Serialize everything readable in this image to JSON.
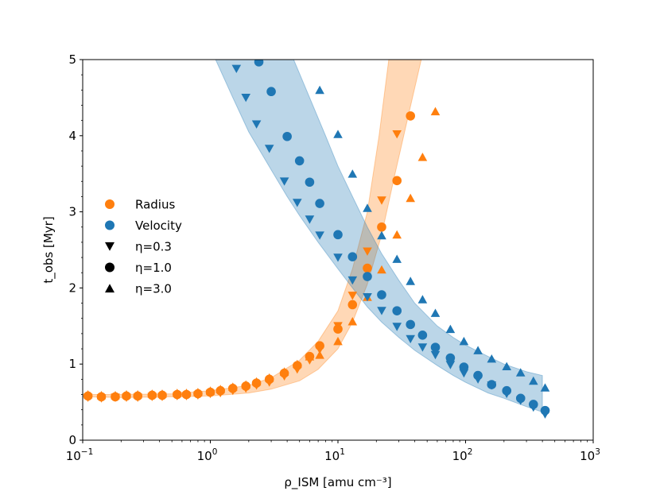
{
  "chart_data": {
    "type": "scatter",
    "title": "",
    "xlabel": "ρ_ISM [amu cm⁻³]",
    "ylabel": "t_obs [Myr]",
    "xscale": "log",
    "xlim": [
      0.1,
      1000
    ],
    "ylim": [
      0,
      5
    ],
    "xticks": [
      {
        "base": "10",
        "exp": "−1",
        "value": 0.1
      },
      {
        "base": "10",
        "exp": "0",
        "value": 1
      },
      {
        "base": "10",
        "exp": "1",
        "value": 10
      },
      {
        "base": "10",
        "exp": "2",
        "value": 100
      },
      {
        "base": "10",
        "exp": "3",
        "value": 1000
      }
    ],
    "yticks": [
      {
        "label": "0",
        "value": 0
      },
      {
        "label": "1",
        "value": 1
      },
      {
        "label": "2",
        "value": 2
      },
      {
        "label": "3",
        "value": 3
      },
      {
        "label": "4",
        "value": 4
      },
      {
        "label": "5",
        "value": 5
      }
    ],
    "grid": false,
    "colors": {
      "radius": "#ff7f0e",
      "velocity": "#1f77b4",
      "legend_marker": "#000000"
    },
    "legend": {
      "placement": "center-left",
      "entries": [
        {
          "label": "Radius",
          "marker": "circle",
          "color": "#ff7f0e"
        },
        {
          "label": "Velocity",
          "marker": "circle",
          "color": "#1f77b4"
        },
        {
          "label": "η=0.3",
          "marker": "triangle-down",
          "color": "#000000"
        },
        {
          "label": "η=1.0",
          "marker": "circle",
          "color": "#000000"
        },
        {
          "label": "η=3.0",
          "marker": "triangle-up",
          "color": "#000000"
        }
      ]
    },
    "bands": [
      {
        "series": "Radius",
        "color": "#ff7f0e",
        "lower": [
          [
            0.1,
            0.57
          ],
          [
            0.2,
            0.56
          ],
          [
            0.5,
            0.57
          ],
          [
            1,
            0.58
          ],
          [
            2,
            0.62
          ],
          [
            3,
            0.67
          ],
          [
            5,
            0.78
          ],
          [
            7,
            0.93
          ],
          [
            10,
            1.2
          ],
          [
            13,
            1.55
          ],
          [
            17,
            2.05
          ],
          [
            22,
            2.7
          ],
          [
            28,
            3.5
          ],
          [
            36,
            4.3
          ],
          [
            45,
            5.0
          ]
        ],
        "upper": [
          [
            0.1,
            0.6
          ],
          [
            0.2,
            0.6
          ],
          [
            0.5,
            0.61
          ],
          [
            1,
            0.65
          ],
          [
            2,
            0.72
          ],
          [
            3,
            0.82
          ],
          [
            4,
            0.95
          ],
          [
            5,
            1.05
          ],
          [
            7,
            1.3
          ],
          [
            10,
            1.7
          ],
          [
            13,
            2.25
          ],
          [
            17,
            3.0
          ],
          [
            21,
            4.0
          ],
          [
            25,
            5.0
          ]
        ]
      },
      {
        "series": "Velocity",
        "color": "#1f77b4",
        "lower": [
          [
            1.1,
            5.0
          ],
          [
            1.5,
            4.5
          ],
          [
            2,
            4.05
          ],
          [
            3,
            3.55
          ],
          [
            4,
            3.2
          ],
          [
            5,
            2.95
          ],
          [
            7,
            2.6
          ],
          [
            10,
            2.25
          ],
          [
            13,
            2.0
          ],
          [
            17,
            1.75
          ],
          [
            22,
            1.55
          ],
          [
            30,
            1.35
          ],
          [
            40,
            1.18
          ],
          [
            60,
            0.98
          ],
          [
            80,
            0.85
          ],
          [
            100,
            0.76
          ],
          [
            150,
            0.62
          ],
          [
            200,
            0.55
          ],
          [
            300,
            0.44
          ],
          [
            400,
            0.37
          ]
        ],
        "upper": [
          [
            4.5,
            5.0
          ],
          [
            6,
            4.5
          ],
          [
            8,
            4.0
          ],
          [
            10,
            3.6
          ],
          [
            13,
            3.2
          ],
          [
            17,
            2.8
          ],
          [
            22,
            2.45
          ],
          [
            30,
            2.1
          ],
          [
            40,
            1.8
          ],
          [
            60,
            1.5
          ],
          [
            80,
            1.35
          ],
          [
            100,
            1.25
          ],
          [
            150,
            1.1
          ],
          [
            200,
            1.0
          ],
          [
            300,
            0.9
          ],
          [
            400,
            0.85
          ]
        ]
      }
    ],
    "series": [
      {
        "name": "Radius",
        "color": "#ff7f0e",
        "eta": "0.3",
        "marker": "triangle-down",
        "points": [
          [
            0.11,
            0.56
          ],
          [
            0.14,
            0.55
          ],
          [
            0.18,
            0.56
          ],
          [
            0.22,
            0.56
          ],
          [
            0.27,
            0.56
          ],
          [
            0.35,
            0.57
          ],
          [
            0.42,
            0.57
          ],
          [
            0.55,
            0.58
          ],
          [
            0.65,
            0.58
          ],
          [
            0.8,
            0.59
          ],
          [
            1.0,
            0.61
          ],
          [
            1.2,
            0.62
          ],
          [
            1.5,
            0.65
          ],
          [
            1.9,
            0.68
          ],
          [
            2.3,
            0.72
          ],
          [
            2.9,
            0.76
          ],
          [
            3.8,
            0.84
          ],
          [
            4.8,
            0.93
          ],
          [
            6,
            1.05
          ],
          [
            7.2,
            1.19
          ],
          [
            10,
            1.5
          ],
          [
            13,
            1.9
          ],
          [
            17,
            2.48
          ],
          [
            22,
            3.15
          ],
          [
            29,
            4.02
          ]
        ]
      },
      {
        "name": "Radius",
        "color": "#ff7f0e",
        "eta": "1.0",
        "marker": "circle",
        "points": [
          [
            0.11,
            0.58
          ],
          [
            0.14,
            0.57
          ],
          [
            0.18,
            0.57
          ],
          [
            0.22,
            0.58
          ],
          [
            0.27,
            0.58
          ],
          [
            0.35,
            0.59
          ],
          [
            0.42,
            0.59
          ],
          [
            0.55,
            0.6
          ],
          [
            0.65,
            0.6
          ],
          [
            0.8,
            0.61
          ],
          [
            1.0,
            0.63
          ],
          [
            1.2,
            0.65
          ],
          [
            1.5,
            0.68
          ],
          [
            1.9,
            0.71
          ],
          [
            2.3,
            0.75
          ],
          [
            2.9,
            0.8
          ],
          [
            3.8,
            0.88
          ],
          [
            4.8,
            0.98
          ],
          [
            6,
            1.1
          ],
          [
            7.2,
            1.24
          ],
          [
            10,
            1.46
          ],
          [
            13,
            1.78
          ],
          [
            17,
            2.26
          ],
          [
            22,
            2.8
          ],
          [
            29,
            3.41
          ],
          [
            37,
            4.26
          ]
        ]
      },
      {
        "name": "Radius",
        "color": "#ff7f0e",
        "eta": "3.0",
        "marker": "triangle-up",
        "points": [
          [
            0.11,
            0.6
          ],
          [
            0.14,
            0.59
          ],
          [
            0.18,
            0.59
          ],
          [
            0.22,
            0.6
          ],
          [
            0.27,
            0.6
          ],
          [
            0.35,
            0.61
          ],
          [
            0.42,
            0.61
          ],
          [
            0.55,
            0.62
          ],
          [
            0.65,
            0.62
          ],
          [
            0.8,
            0.63
          ],
          [
            1.0,
            0.65
          ],
          [
            1.2,
            0.67
          ],
          [
            1.5,
            0.7
          ],
          [
            1.9,
            0.73
          ],
          [
            2.3,
            0.77
          ],
          [
            2.9,
            0.82
          ],
          [
            3.8,
            0.9
          ],
          [
            4.8,
            1.0
          ],
          [
            6,
            1.1
          ],
          [
            7.2,
            1.12
          ],
          [
            10,
            1.3
          ],
          [
            13,
            1.56
          ],
          [
            17,
            1.88
          ],
          [
            22,
            2.24
          ],
          [
            29,
            2.7
          ],
          [
            37,
            3.18
          ],
          [
            46,
            3.72
          ],
          [
            58,
            4.32
          ]
        ]
      },
      {
        "name": "Velocity",
        "color": "#1f77b4",
        "eta": "0.3",
        "marker": "triangle-down",
        "points": [
          [
            1.6,
            4.88
          ],
          [
            1.9,
            4.5
          ],
          [
            2.3,
            4.15
          ],
          [
            2.9,
            3.83
          ],
          [
            3.8,
            3.4
          ],
          [
            4.8,
            3.12
          ],
          [
            6,
            2.9
          ],
          [
            7.2,
            2.69
          ],
          [
            10,
            2.4
          ],
          [
            13,
            2.1
          ],
          [
            17,
            1.88
          ],
          [
            22,
            1.7
          ],
          [
            29,
            1.49
          ],
          [
            37,
            1.33
          ],
          [
            46,
            1.22
          ],
          [
            58,
            1.12
          ],
          [
            76,
            0.99
          ],
          [
            97,
            0.88
          ],
          [
            125,
            0.8
          ],
          [
            160,
            0.72
          ],
          [
            210,
            0.61
          ],
          [
            270,
            0.52
          ],
          [
            340,
            0.43
          ],
          [
            420,
            0.34
          ]
        ]
      },
      {
        "name": "Velocity",
        "color": "#1f77b4",
        "eta": "1.0",
        "marker": "circle",
        "points": [
          [
            2.4,
            4.97
          ],
          [
            3.0,
            4.58
          ],
          [
            4.0,
            3.99
          ],
          [
            5,
            3.67
          ],
          [
            6,
            3.39
          ],
          [
            7.2,
            3.11
          ],
          [
            10,
            2.7
          ],
          [
            13,
            2.41
          ],
          [
            17,
            2.15
          ],
          [
            22,
            1.91
          ],
          [
            29,
            1.7
          ],
          [
            37,
            1.52
          ],
          [
            46,
            1.38
          ],
          [
            58,
            1.22
          ],
          [
            76,
            1.08
          ],
          [
            97,
            0.96
          ],
          [
            125,
            0.85
          ],
          [
            160,
            0.73
          ],
          [
            210,
            0.65
          ],
          [
            270,
            0.55
          ],
          [
            340,
            0.47
          ],
          [
            420,
            0.39
          ]
        ]
      },
      {
        "name": "Velocity",
        "color": "#1f77b4",
        "eta": "3.0",
        "marker": "triangle-up",
        "points": [
          [
            7.2,
            4.6
          ],
          [
            10,
            4.02
          ],
          [
            13,
            3.5
          ],
          [
            17,
            3.05
          ],
          [
            22,
            2.69
          ],
          [
            29,
            2.38
          ],
          [
            37,
            2.09
          ],
          [
            46,
            1.85
          ],
          [
            58,
            1.67
          ],
          [
            76,
            1.46
          ],
          [
            97,
            1.3
          ],
          [
            125,
            1.18
          ],
          [
            160,
            1.07
          ],
          [
            210,
            0.97
          ],
          [
            270,
            0.89
          ],
          [
            340,
            0.78
          ],
          [
            420,
            0.69
          ]
        ]
      }
    ]
  }
}
